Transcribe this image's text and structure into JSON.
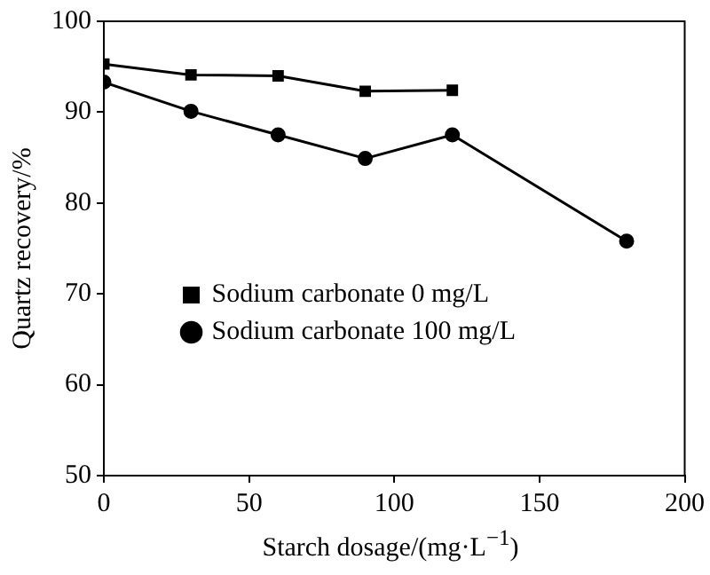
{
  "chart_data": {
    "type": "line",
    "xlabel": "Starch dosage/(mg·L$^{−1}$)",
    "ylabel": "Quartz recovery/%",
    "x": [
      0,
      30,
      60,
      90,
      120,
      180
    ],
    "series": [
      {
        "name": "Sodium carbonate 0 mg/L",
        "color": "#000000",
        "marker": "square",
        "values": [
          95.3,
          94.1,
          94.0,
          92.3,
          92.4,
          null
        ]
      },
      {
        "name": "Sodium carbonate 100 mg/L",
        "color": "#000000",
        "marker": "circle",
        "values": [
          93.3,
          90.1,
          87.5,
          84.9,
          87.5,
          75.8
        ]
      }
    ],
    "xlim": [
      0,
      200
    ],
    "xticks": [
      0,
      50,
      100,
      150,
      200
    ],
    "ylim": [
      50,
      100
    ],
    "yticks": [
      50,
      60,
      70,
      80,
      90,
      100
    ],
    "grid": false,
    "legend": "center left",
    "line_style": "solid"
  }
}
